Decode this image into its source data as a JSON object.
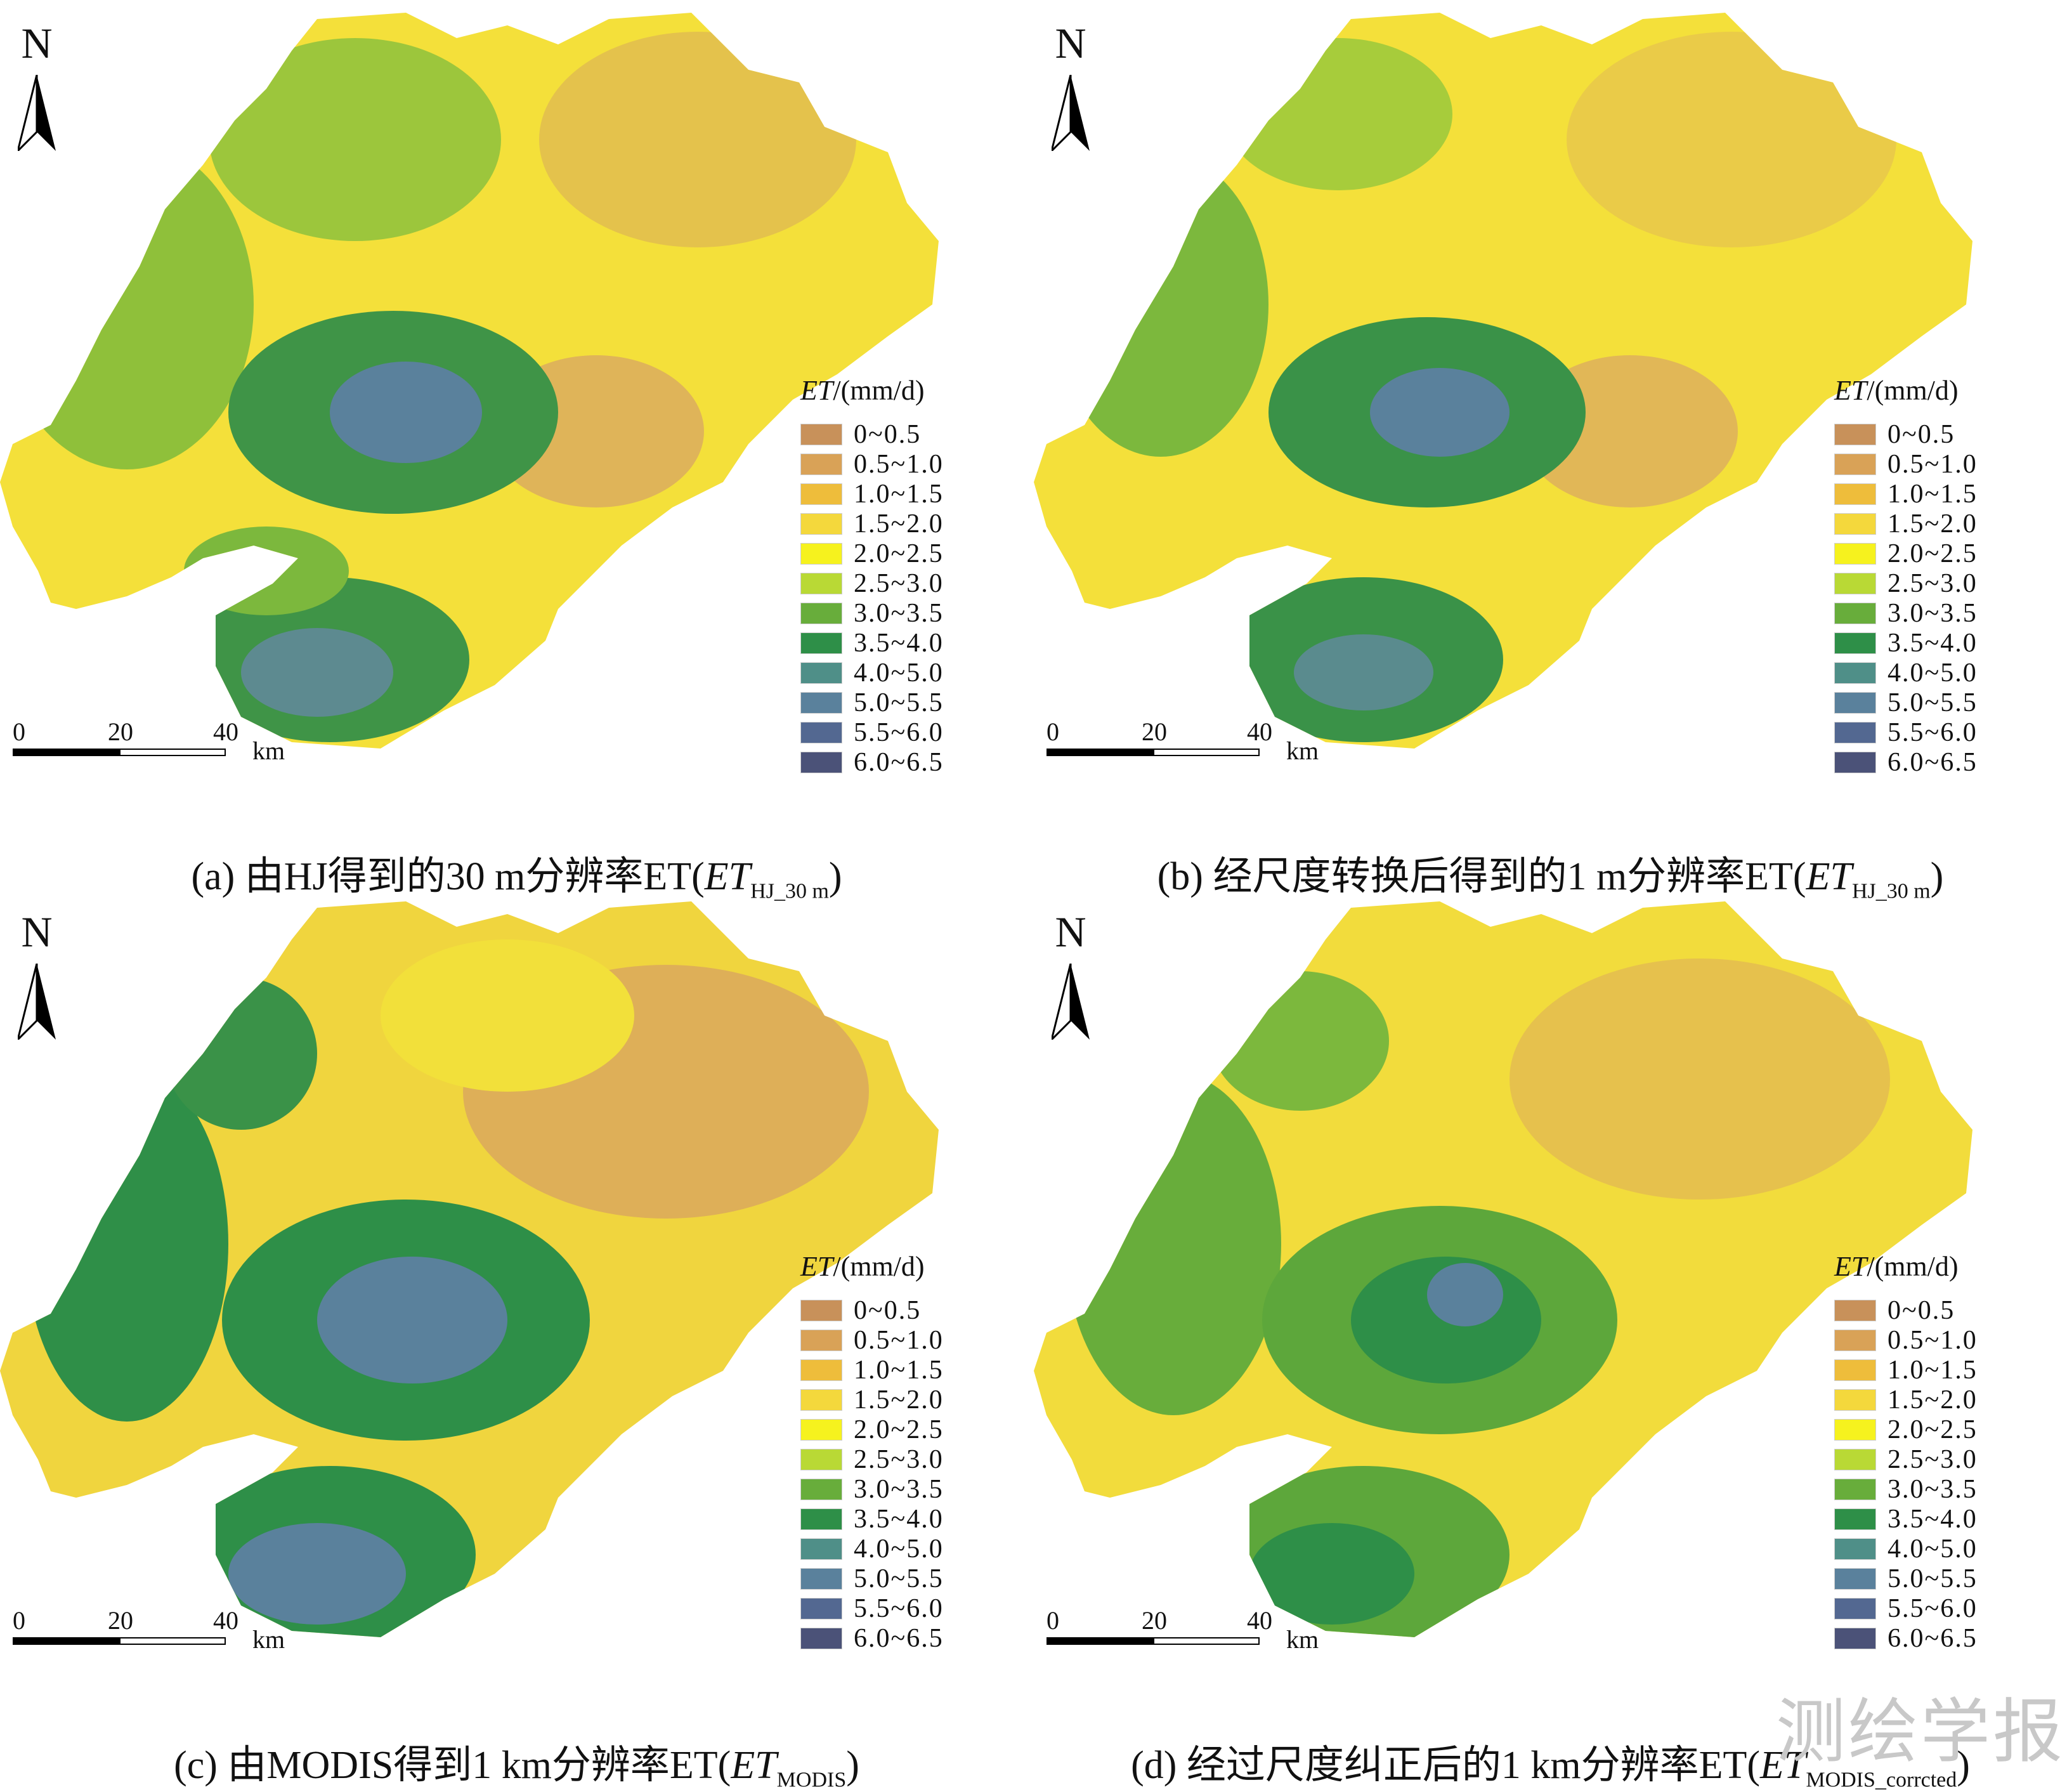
{
  "north_label": "N",
  "legend": {
    "title_var": "ET",
    "title_unit": "/(mm/d)",
    "items": [
      {
        "label": "0~0.5",
        "color": "#c8915a"
      },
      {
        "label": "0.5~1.0",
        "color": "#d9a257"
      },
      {
        "label": "1.0~1.5",
        "color": "#eebd3b"
      },
      {
        "label": "1.5~2.0",
        "color": "#f4d83c"
      },
      {
        "label": "2.0~2.5",
        "color": "#f6f21e"
      },
      {
        "label": "2.5~3.0",
        "color": "#b9d935"
      },
      {
        "label": "3.0~3.5",
        "color": "#68ad3b"
      },
      {
        "label": "3.5~4.0",
        "color": "#2e8f48"
      },
      {
        "label": "4.0~5.0",
        "color": "#4f8f88"
      },
      {
        "label": "5.0~5.5",
        "color": "#5a819c"
      },
      {
        "label": "5.5~6.0",
        "color": "#536891"
      },
      {
        "label": "6.0~6.5",
        "color": "#4b5278"
      }
    ]
  },
  "scalebar": {
    "ticks": [
      "0",
      "20",
      "40"
    ],
    "unit": "km"
  },
  "panels": [
    {
      "id": "a",
      "caption_prefix": "(a) 由HJ得到的30 m分辨率ET(",
      "caption_var": "ET",
      "caption_sub": "HJ_30 m",
      "caption_suffix": ")"
    },
    {
      "id": "b",
      "caption_prefix": "(b) 经尺度转换后得到的1 m分辨率ET(",
      "caption_var": "ET",
      "caption_sub": "HJ_30 m",
      "caption_suffix": ")"
    },
    {
      "id": "c",
      "caption_prefix": "(c) 由MODIS得到1 km分辨率ET(",
      "caption_var": "ET",
      "caption_sub": "MODIS",
      "caption_suffix": ")"
    },
    {
      "id": "d",
      "caption_prefix": "(d) 经过尺度纠正后的1 km分辨率ET(",
      "caption_var": "ET",
      "caption_sub": "MODIS_corrcted",
      "caption_suffix": ")"
    }
  ],
  "watermark": "测绘学报"
}
